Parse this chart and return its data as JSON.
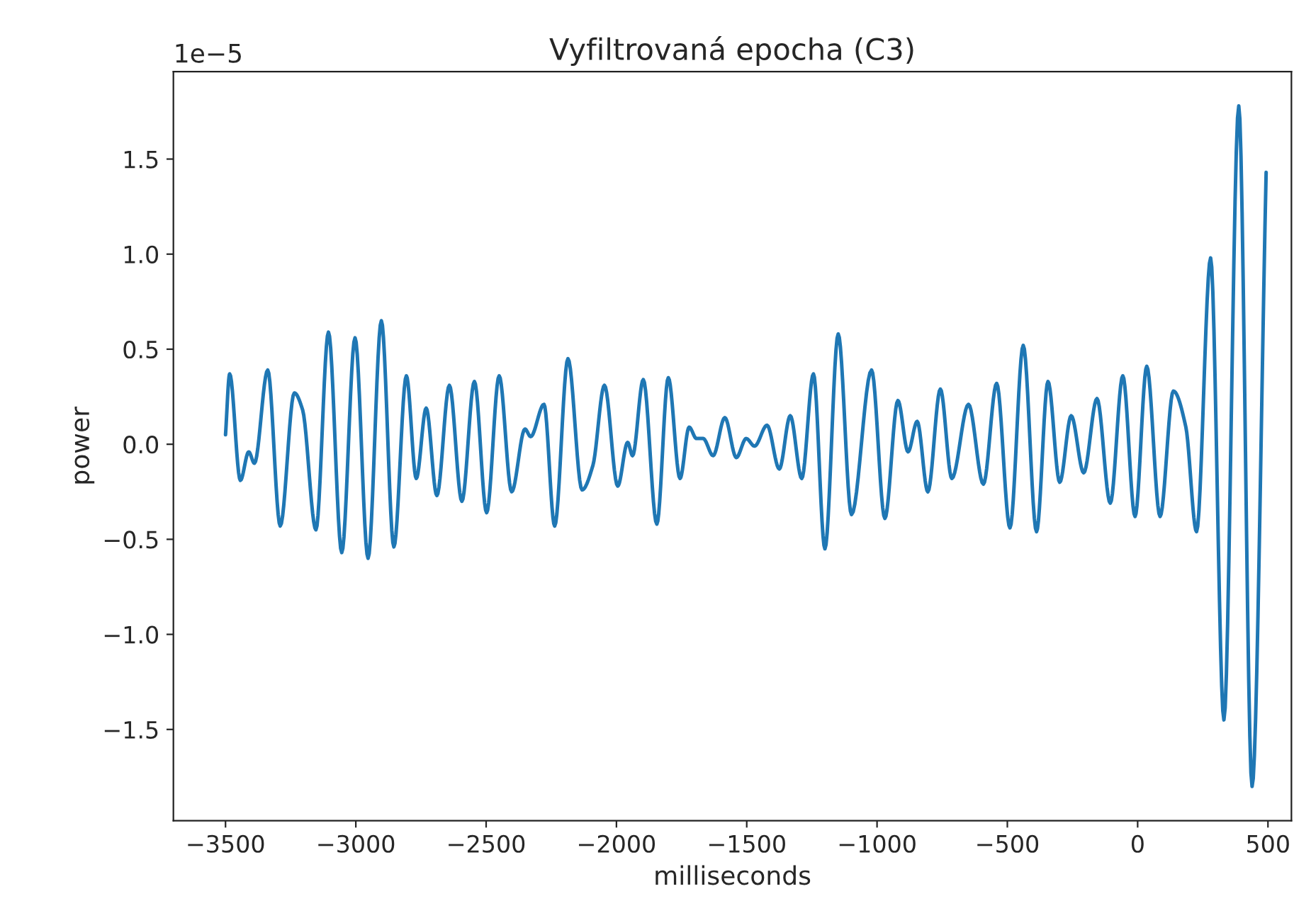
{
  "chart_data": {
    "type": "line",
    "title": "Vyfiltrovaná epocha (C3)",
    "xlabel": "milliseconds",
    "ylabel": "power",
    "annotations": [
      "1e−5"
    ],
    "x": [
      -3500,
      -3484,
      -3443,
      -3411,
      -3389,
      -3338,
      -3290,
      -3236,
      -3204,
      -3153,
      -3105,
      -3054,
      -3003,
      -2953,
      -2902,
      -2854,
      -2806,
      -2768,
      -2730,
      -2689,
      -2641,
      -2593,
      -2545,
      -2498,
      -2450,
      -2402,
      -2351,
      -2329,
      -2278,
      -2237,
      -2186,
      -2132,
      -2090,
      -2046,
      -1995,
      -1957,
      -1938,
      -1897,
      -1845,
      -1801,
      -1756,
      -1721,
      -1693,
      -1667,
      -1629,
      -1584,
      -1540,
      -1502,
      -1470,
      -1422,
      -1375,
      -1333,
      -1289,
      -1244,
      -1200,
      -1149,
      -1098,
      -1021,
      -970,
      -920,
      -881,
      -846,
      -805,
      -757,
      -713,
      -649,
      -592,
      -541,
      -490,
      -439,
      -388,
      -344,
      -299,
      -255,
      -207,
      -156,
      -105,
      -57,
      -10,
      35,
      86,
      137,
      185,
      226,
      280,
      331,
      388,
      439,
      493
    ],
    "series": [
      {
        "color": "#1f77b4",
        "values": [
          0.05,
          0.37,
          -0.19,
          -0.04,
          -0.1,
          0.39,
          -0.43,
          0.27,
          0.18,
          -0.45,
          0.59,
          -0.57,
          0.56,
          -0.6,
          0.65,
          -0.54,
          0.36,
          -0.18,
          0.19,
          -0.27,
          0.31,
          -0.3,
          0.33,
          -0.36,
          0.36,
          -0.25,
          0.08,
          0.04,
          0.21,
          -0.43,
          0.45,
          -0.24,
          -0.11,
          0.31,
          -0.22,
          0.01,
          -0.06,
          0.34,
          -0.42,
          0.35,
          -0.18,
          0.09,
          0.03,
          0.03,
          -0.06,
          0.14,
          -0.07,
          0.03,
          -0.01,
          0.1,
          -0.13,
          0.15,
          -0.18,
          0.37,
          -0.55,
          0.58,
          -0.37,
          0.39,
          -0.39,
          0.23,
          -0.04,
          0.12,
          -0.25,
          0.29,
          -0.18,
          0.21,
          -0.21,
          0.32,
          -0.44,
          0.52,
          -0.46,
          0.33,
          -0.2,
          0.15,
          -0.15,
          0.24,
          -0.31,
          0.36,
          -0.38,
          0.41,
          -0.38,
          0.28,
          0.09,
          -0.46,
          0.98,
          -1.45,
          1.78,
          -1.8,
          1.43
        ]
      }
    ],
    "xlim": [
      -3700,
      590
    ],
    "ylim": [
      -1.98,
      1.96
    ],
    "xticks": [
      {
        "value": -3500,
        "label": "−3500"
      },
      {
        "value": -3000,
        "label": "−3000"
      },
      {
        "value": -2500,
        "label": "−2500"
      },
      {
        "value": -2000,
        "label": "−2000"
      },
      {
        "value": -1500,
        "label": "−1500"
      },
      {
        "value": -1000,
        "label": "−1000"
      },
      {
        "value": -500,
        "label": "−500"
      },
      0,
      500
    ],
    "yticks": [
      {
        "value": -1.5,
        "label": "−1.5"
      },
      {
        "value": -1.0,
        "label": "−1.0"
      },
      {
        "value": -0.5,
        "label": "−0.5"
      },
      {
        "value": 0,
        "label": "0.0"
      },
      {
        "value": 0.5,
        "label": "0.5"
      },
      {
        "value": 1.0,
        "label": "1.0"
      },
      {
        "value": 1.5,
        "label": "1.5"
      }
    ],
    "grid": false,
    "marker": "none",
    "line_style": "solid"
  }
}
